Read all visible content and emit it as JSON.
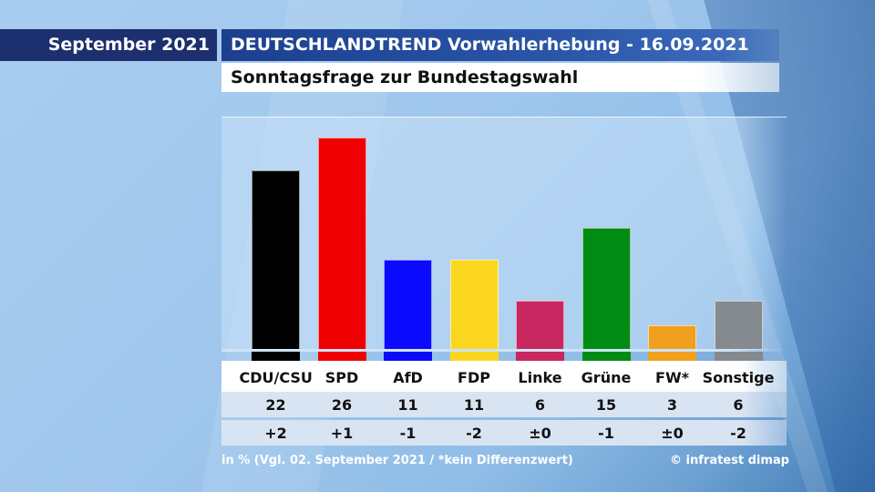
{
  "header": {
    "month": "September 2021",
    "title": "DEUTSCHLANDTREND Vorwahlerhebung - 16.09.2021",
    "subtitle": "Sonntagsfrage zur Bundestagswahl"
  },
  "chart_data": {
    "type": "bar",
    "title": "Sonntagsfrage zur Bundestagswahl",
    "unit": "%",
    "ylim": [
      0,
      28
    ],
    "categories": [
      "CDU/CSU",
      "SPD",
      "AfD",
      "FDP",
      "Linke",
      "Grüne",
      "FW*",
      "Sonstige"
    ],
    "values": [
      22,
      26,
      11,
      11,
      6,
      15,
      3,
      6
    ],
    "value_labels": [
      "22",
      "26",
      "11",
      "11",
      "6",
      "15",
      "3",
      "6"
    ],
    "differences": [
      "+2",
      "+1",
      "-1",
      "-2",
      "±0",
      "-1",
      "±0",
      "-2"
    ],
    "colors": [
      "#000000",
      "#f00000",
      "#0a0aff",
      "#fad71e",
      "#c8275f",
      "#008c14",
      "#f0a01e",
      "#858a8e"
    ]
  },
  "footer": {
    "note": "in % (Vgl. 02. September 2021 / *kein Differenzwert)",
    "source": "© infratest dimap"
  }
}
